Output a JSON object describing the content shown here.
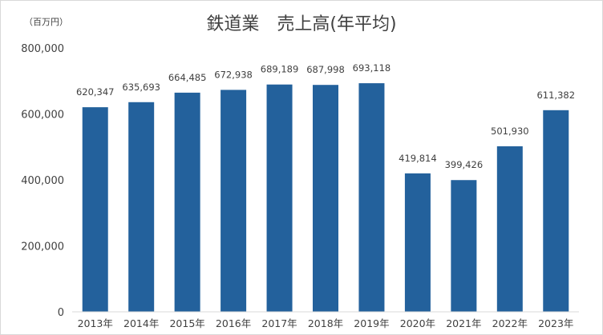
{
  "chart_data": {
    "type": "bar",
    "title": "鉄道業　売上高(年平均)",
    "unit_label": "（百万円）",
    "xlabel": "",
    "ylabel": "",
    "categories": [
      "2013年",
      "2014年",
      "2015年",
      "2016年",
      "2017年",
      "2018年",
      "2019年",
      "2020年",
      "2021年",
      "2022年",
      "2023年"
    ],
    "values": [
      620347,
      635693,
      664485,
      672938,
      689189,
      687998,
      693118,
      419814,
      399426,
      501930,
      611382
    ],
    "data_labels": [
      "620,347",
      "635,693",
      "664,485",
      "672,938",
      "689,189",
      "687,998",
      "693,118",
      "419,814",
      "399,426",
      "501,930",
      "611,382"
    ],
    "ylim": [
      0,
      800000
    ],
    "yticks": [
      0,
      200000,
      400000,
      600000,
      800000
    ],
    "ytick_labels": [
      "0",
      "200,000",
      "400,000",
      "600,000",
      "800,000"
    ],
    "gridlines": false,
    "legend": "none",
    "bar_color": "#23619c"
  }
}
